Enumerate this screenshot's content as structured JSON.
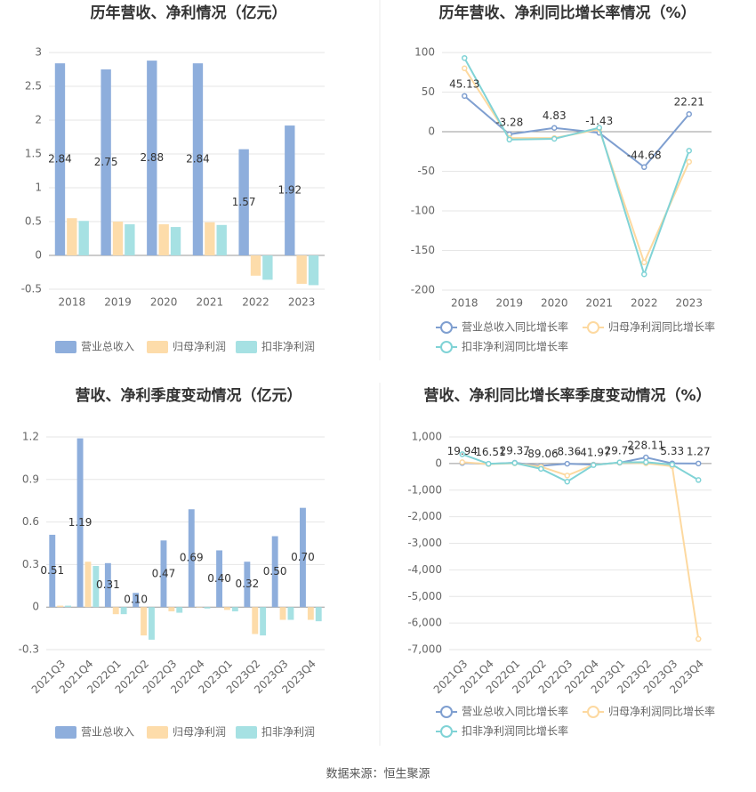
{
  "chart_data": [
    {
      "type": "bar",
      "title": "历年营收、净利情况（亿元）",
      "categories": [
        "2018",
        "2019",
        "2020",
        "2021",
        "2022",
        "2023"
      ],
      "series": [
        {
          "name": "营业总收入",
          "color": "#8eaedc",
          "show_labels": true,
          "values": [
            2.84,
            2.75,
            2.88,
            2.84,
            1.57,
            1.92
          ]
        },
        {
          "name": "归母净利润",
          "color": "#fddcaa",
          "values": [
            0.55,
            0.5,
            0.46,
            0.49,
            -0.3,
            -0.42
          ]
        },
        {
          "name": "扣非净利润",
          "color": "#a6e1e3",
          "values": [
            0.51,
            0.46,
            0.42,
            0.45,
            -0.36,
            -0.44
          ]
        }
      ],
      "ylim": [
        -0.5,
        3
      ],
      "yticks": [
        -0.5,
        0,
        0.5,
        1,
        1.5,
        2,
        2.5,
        3
      ],
      "grid": true
    },
    {
      "type": "line",
      "title": "历年营收、净利同比增长率情况（%）",
      "categories": [
        "2018",
        "2019",
        "2020",
        "2021",
        "2022",
        "2023"
      ],
      "series": [
        {
          "name": "营业总收入同比增长率",
          "color": "#7f9fd0",
          "show_labels": true,
          "values": [
            45.13,
            -3.28,
            4.83,
            -1.43,
            -44.68,
            22.21
          ]
        },
        {
          "name": "归母净利润同比增长率",
          "color": "#fdd9a0",
          "values": [
            80,
            -8,
            -8,
            3,
            -165,
            -38
          ]
        },
        {
          "name": "扣非净利润同比增长率",
          "color": "#80d3d6",
          "values": [
            93,
            -10,
            -9,
            5,
            -180,
            -24
          ]
        }
      ],
      "ylim": [
        -200,
        100
      ],
      "yticks": [
        -200,
        -150,
        -100,
        -50,
        0,
        50,
        100
      ],
      "grid": true
    },
    {
      "type": "bar",
      "title": "营收、净利季度变动情况（亿元）",
      "categories": [
        "2021Q3",
        "2021Q4",
        "2022Q1",
        "2022Q2",
        "2022Q3",
        "2022Q4",
        "2023Q1",
        "2023Q2",
        "2023Q3",
        "2023Q4"
      ],
      "series": [
        {
          "name": "营业总收入",
          "color": "#8eaedc",
          "show_labels": true,
          "values": [
            0.51,
            1.19,
            0.31,
            0.1,
            0.47,
            0.69,
            0.4,
            0.32,
            0.5,
            0.7
          ],
          "value_labels": [
            "0.51",
            "1.19",
            "0.31",
            "0.10",
            "0.47",
            "0.69",
            "0.40",
            "0.32",
            "0.50",
            "0.70"
          ]
        },
        {
          "name": "归母净利润",
          "color": "#fddcaa",
          "values": [
            0.01,
            0.32,
            -0.05,
            -0.2,
            -0.03,
            0.0,
            -0.02,
            -0.19,
            -0.09,
            -0.09
          ]
        },
        {
          "name": "扣非净利润",
          "color": "#a6e1e3",
          "values": [
            0.01,
            0.29,
            -0.05,
            -0.23,
            -0.04,
            -0.01,
            -0.03,
            -0.2,
            -0.09,
            -0.1
          ]
        }
      ],
      "ylim": [
        -0.3,
        1.2
      ],
      "yticks": [
        -0.3,
        0,
        0.3,
        0.6,
        0.9,
        1.2
      ],
      "grid": true,
      "x_label_rotation": -45
    },
    {
      "type": "line",
      "title": "营收、净利同比增长率季度变动情况（%）",
      "categories": [
        "2021Q3",
        "2021Q4",
        "2022Q1",
        "2022Q2",
        "2022Q3",
        "2022Q4",
        "2023Q1",
        "2023Q2",
        "2023Q3",
        "2023Q4"
      ],
      "series": [
        {
          "name": "营业总收入同比增长率",
          "color": "#7f9fd0",
          "show_labels": true,
          "values": [
            19.94,
            -16.51,
            29.37,
            -89.06,
            -8.36,
            -41.97,
            29.75,
            228.11,
            5.33,
            1.27
          ]
        },
        {
          "name": "归母净利润同比增长率",
          "color": "#fdd9a0",
          "values": [
            50,
            -20,
            10,
            -120,
            -450,
            -50,
            30,
            10,
            -100,
            -6600
          ]
        },
        {
          "name": "扣非净利润同比增长率",
          "color": "#80d3d6",
          "values": [
            350,
            -10,
            20,
            -200,
            -680,
            -60,
            40,
            50,
            -40,
            -620
          ]
        }
      ],
      "ylim": [
        -7000,
        1000
      ],
      "yticks": [
        {
          "value": -7000,
          "label": "-7,000"
        },
        {
          "value": -6000,
          "label": "-6,000"
        },
        {
          "value": -5000,
          "label": "-5,000"
        },
        {
          "value": -4000,
          "label": "-4,000"
        },
        {
          "value": -3000,
          "label": "-3,000"
        },
        {
          "value": -2000,
          "label": "-2,000"
        },
        {
          "value": -1000,
          "label": "-1,000"
        },
        0,
        {
          "value": 1000,
          "label": "1,000"
        }
      ],
      "grid": true,
      "x_label_rotation": -45
    }
  ],
  "source": "数据来源：恒生聚源"
}
